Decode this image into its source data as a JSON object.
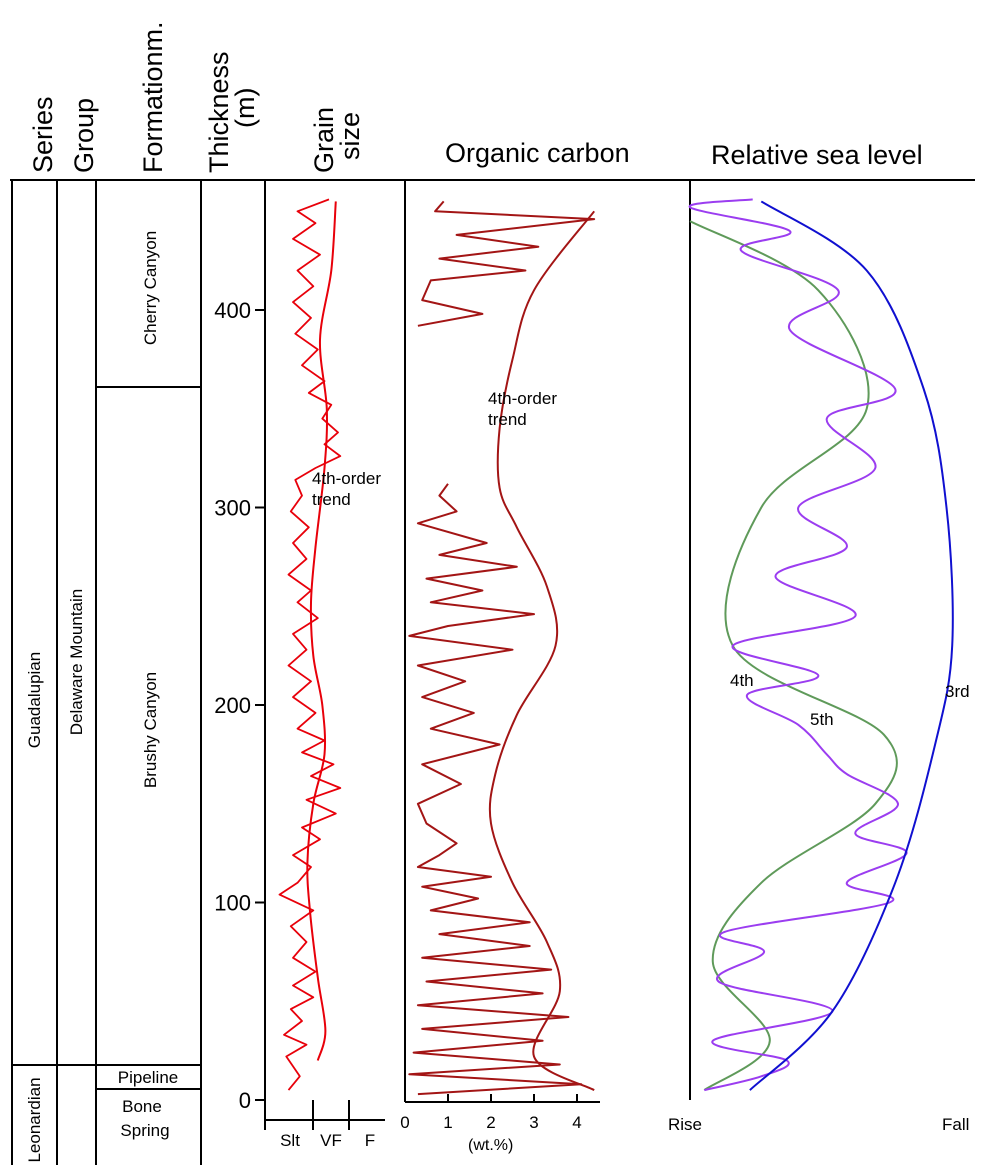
{
  "columns": {
    "series": "Series",
    "group": "Group",
    "formation": "Formationm.",
    "thickness_1": "Thickness",
    "thickness_2": "(m)",
    "grain_1": "Grain",
    "grain_2": "size",
    "organic_carbon": "Organic carbon",
    "sea_level": "Relative sea level"
  },
  "units": {
    "series_upper": "Guadalupian",
    "series_lower": "Leonardian",
    "group_upper": "Delaware Mountain",
    "formation_1": "Cherry Canyon",
    "formation_2": "Brushy Canyon",
    "formation_3": "Pipeline",
    "formation_4a": "Bone",
    "formation_4b": "Spring"
  },
  "annotations": {
    "trend_a": "4th-order",
    "trend_b": "trend",
    "toc_unit": "(wt.%)",
    "sl_4th": "4th",
    "sl_5th": "5th",
    "sl_3rd": "3rd",
    "rise": "Rise",
    "fall": "Fall"
  },
  "colors": {
    "grain": "#e8000a",
    "toc": "#a31515",
    "third_order": "#1010d0",
    "fourth_order": "#5f9a5a",
    "fifth_order": "#9b3df0"
  },
  "chart_data": [
    {
      "type": "line",
      "panel": "grain-size",
      "y_ticks": [
        0,
        100,
        200,
        300,
        400
      ],
      "ylim": [
        0,
        460
      ],
      "x_categories": [
        "Slt",
        "VF",
        "F"
      ],
      "series": [
        {
          "name": "4th-order trend",
          "points": [
            [
              0.95,
              20
            ],
            [
              1.12,
              35
            ],
            [
              0.95,
              62
            ],
            [
              0.78,
              95
            ],
            [
              0.72,
              120
            ],
            [
              0.85,
              150
            ],
            [
              1.1,
              175
            ],
            [
              1.05,
              200
            ],
            [
              0.85,
              225
            ],
            [
              0.8,
              252
            ],
            [
              0.9,
              280
            ],
            [
              1.1,
              320
            ],
            [
              1.15,
              350
            ],
            [
              1.0,
              385
            ],
            [
              1.25,
              420
            ],
            [
              1.35,
              455
            ]
          ]
        },
        {
          "values": [
            [
              0.3,
              5
            ],
            [
              0.55,
              12
            ],
            [
              0.25,
              22
            ],
            [
              0.7,
              28
            ],
            [
              0.2,
              33
            ],
            [
              0.6,
              40
            ],
            [
              0.35,
              46
            ],
            [
              0.85,
              52
            ],
            [
              0.4,
              58
            ],
            [
              0.9,
              65
            ],
            [
              0.4,
              72
            ],
            [
              0.7,
              80
            ],
            [
              0.35,
              88
            ],
            [
              0.85,
              96
            ],
            [
              0.1,
              104
            ],
            [
              0.5,
              110
            ],
            [
              0.8,
              118
            ],
            [
              0.4,
              124
            ],
            [
              1.0,
              132
            ],
            [
              0.6,
              138
            ],
            [
              1.35,
              145
            ],
            [
              0.7,
              152
            ],
            [
              1.45,
              158
            ],
            [
              0.8,
              164
            ],
            [
              1.3,
              170
            ],
            [
              0.6,
              176
            ],
            [
              1.1,
              182
            ],
            [
              0.5,
              188
            ],
            [
              0.9,
              196
            ],
            [
              0.4,
              204
            ],
            [
              0.8,
              212
            ],
            [
              0.3,
              220
            ],
            [
              0.7,
              228
            ],
            [
              0.4,
              236
            ],
            [
              0.95,
              244
            ],
            [
              0.5,
              252
            ],
            [
              0.8,
              258
            ],
            [
              0.3,
              266
            ],
            [
              0.7,
              274
            ],
            [
              0.4,
              282
            ],
            [
              0.75,
              290
            ],
            [
              0.35,
              298
            ],
            [
              0.6,
              306
            ],
            [
              0.45,
              314
            ],
            [
              0.9,
              320
            ],
            [
              1.45,
              326
            ],
            [
              1.1,
              332
            ],
            [
              1.4,
              338
            ],
            [
              1.05,
              345
            ],
            [
              1.25,
              352
            ],
            [
              0.75,
              358
            ],
            [
              1.1,
              364
            ],
            [
              0.6,
              372
            ],
            [
              0.95,
              380
            ],
            [
              0.45,
              388
            ],
            [
              0.8,
              396
            ],
            [
              0.4,
              404
            ],
            [
              0.85,
              412
            ],
            [
              0.5,
              420
            ],
            [
              1.0,
              428
            ],
            [
              0.4,
              436
            ],
            [
              0.9,
              444
            ],
            [
              0.5,
              450
            ],
            [
              1.2,
              456
            ]
          ]
        }
      ]
    },
    {
      "type": "line",
      "panel": "organic-carbon",
      "xlabel": "(wt.%)",
      "x_ticks": [
        0,
        1,
        2,
        3,
        4
      ],
      "xlim": [
        0,
        4.5
      ],
      "ylim": [
        0,
        460
      ],
      "series": [
        {
          "name": "4th-order trend",
          "points": [
            [
              4.4,
              5
            ],
            [
              3.0,
              22
            ],
            [
              3.6,
              55
            ],
            [
              3.3,
              80
            ],
            [
              2.5,
              110
            ],
            [
              2.0,
              140
            ],
            [
              2.1,
              165
            ],
            [
              2.6,
              195
            ],
            [
              3.5,
              230
            ],
            [
              3.3,
              260
            ],
            [
              2.6,
              290
            ],
            [
              2.2,
              310
            ],
            [
              2.2,
              340
            ],
            [
              2.5,
              375
            ],
            [
              3.0,
              410
            ],
            [
              4.4,
              450
            ]
          ]
        },
        {
          "values": [
            [
              0.3,
              3
            ],
            [
              4.1,
              8
            ],
            [
              0.1,
              13
            ],
            [
              3.6,
              18
            ],
            [
              0.2,
              24
            ],
            [
              3.2,
              30
            ],
            [
              0.4,
              36
            ],
            [
              3.8,
              42
            ],
            [
              0.3,
              48
            ],
            [
              3.2,
              54
            ],
            [
              0.5,
              60
            ],
            [
              3.4,
              66
            ],
            [
              0.4,
              72
            ],
            [
              2.9,
              78
            ],
            [
              0.8,
              84
            ],
            [
              2.9,
              90
            ],
            [
              0.6,
              96
            ],
            [
              1.7,
              102
            ],
            [
              0.4,
              108
            ],
            [
              2.0,
              113
            ],
            [
              0.3,
              118
            ],
            [
              0.8,
              124
            ],
            [
              1.2,
              130
            ],
            [
              0.5,
              140
            ],
            [
              0.3,
              150
            ],
            [
              1.3,
              160
            ],
            [
              0.4,
              170
            ],
            [
              2.2,
              180
            ],
            [
              0.6,
              188
            ],
            [
              1.6,
              196
            ],
            [
              0.4,
              204
            ],
            [
              1.4,
              212
            ],
            [
              0.3,
              220
            ],
            [
              2.5,
              228
            ],
            [
              0.1,
              235
            ],
            [
              1.0,
              240
            ],
            [
              3.0,
              246
            ],
            [
              0.6,
              252
            ],
            [
              1.8,
              258
            ],
            [
              0.5,
              264
            ],
            [
              2.6,
              270
            ],
            [
              0.8,
              276
            ],
            [
              1.9,
              282
            ],
            [
              0.3,
              292
            ],
            [
              1.2,
              298
            ],
            [
              0.8,
              306
            ],
            [
              1.0,
              312
            ]
          ]
        },
        {
          "values": [
            [
              0.3,
              392
            ],
            [
              1.8,
              398
            ],
            [
              0.4,
              405
            ],
            [
              0.6,
              415
            ],
            [
              2.8,
              420
            ],
            [
              0.8,
              426
            ],
            [
              3.1,
              432
            ],
            [
              1.2,
              438
            ],
            [
              4.4,
              446
            ],
            [
              0.7,
              450
            ],
            [
              0.9,
              455
            ]
          ]
        }
      ]
    },
    {
      "type": "line",
      "panel": "relative-sea-level",
      "x_categories": [
        "Rise",
        "Fall"
      ],
      "ylim": [
        0,
        460
      ],
      "series": [
        {
          "name": "3rd",
          "points": [
            [
              0.21,
              5
            ],
            [
              0.5,
              45
            ],
            [
              0.72,
              110
            ],
            [
              0.86,
              180
            ],
            [
              0.92,
              230
            ],
            [
              0.9,
              300
            ],
            [
              0.82,
              360
            ],
            [
              0.62,
              420
            ],
            [
              0.25,
              455
            ]
          ]
        },
        {
          "name": "4th",
          "points": [
            [
              0.05,
              5
            ],
            [
              0.28,
              30
            ],
            [
              0.08,
              70
            ],
            [
              0.25,
              110
            ],
            [
              0.65,
              150
            ],
            [
              0.68,
              185
            ],
            [
              0.15,
              230
            ],
            [
              0.25,
              300
            ],
            [
              0.62,
              350
            ],
            [
              0.45,
              410
            ],
            [
              0.0,
              445
            ]
          ]
        },
        {
          "name": "5th",
          "points": [
            [
              0.05,
              5
            ],
            [
              0.25,
              12
            ],
            [
              0.34,
              20
            ],
            [
              0.08,
              30
            ],
            [
              0.5,
              45
            ],
            [
              0.1,
              60
            ],
            [
              0.26,
              75
            ],
            [
              0.12,
              85
            ],
            [
              0.7,
              100
            ],
            [
              0.55,
              110
            ],
            [
              0.76,
              125
            ],
            [
              0.58,
              135
            ],
            [
              0.73,
              150
            ],
            [
              0.55,
              165
            ],
            [
              0.48,
              175
            ],
            [
              0.38,
              190
            ],
            [
              0.2,
              205
            ],
            [
              0.45,
              215
            ],
            [
              0.15,
              230
            ],
            [
              0.58,
              245
            ],
            [
              0.3,
              265
            ],
            [
              0.55,
              280
            ],
            [
              0.38,
              300
            ],
            [
              0.65,
              320
            ],
            [
              0.48,
              345
            ],
            [
              0.72,
              360
            ],
            [
              0.35,
              390
            ],
            [
              0.52,
              410
            ],
            [
              0.18,
              430
            ],
            [
              0.35,
              440
            ],
            [
              0.0,
              452
            ],
            [
              0.22,
              456
            ]
          ]
        }
      ]
    }
  ]
}
